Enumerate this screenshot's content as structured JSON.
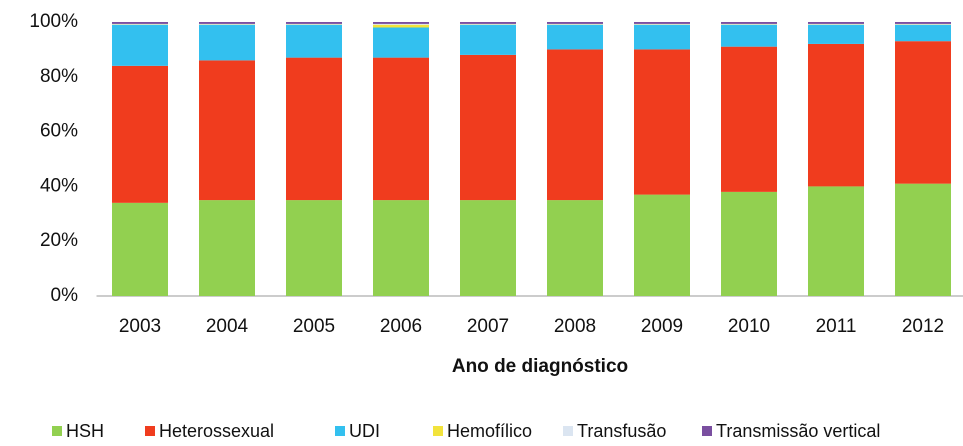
{
  "chart_data": {
    "type": "stacked_bar",
    "x_label": "Ano de diagnóstico",
    "categories": [
      "2003",
      "2004",
      "2005",
      "2006",
      "2007",
      "2008",
      "2009",
      "2010",
      "2011",
      "2012"
    ],
    "series": [
      {
        "name": "HSH",
        "color": "#92d050",
        "values": [
          34,
          35,
          35,
          35,
          35,
          35,
          37,
          38,
          40,
          41
        ]
      },
      {
        "name": "Heterossexual",
        "color": "#f03c1e",
        "values": [
          50,
          51,
          52,
          52,
          53,
          55,
          53,
          53,
          52,
          52
        ]
      },
      {
        "name": "UDI",
        "color": "#33c0ef",
        "values": [
          15,
          13,
          12,
          11,
          11,
          9,
          9,
          8,
          7,
          6
        ]
      },
      {
        "name": "Hemofílico",
        "color": "#f2e33c",
        "values": [
          0.1,
          0.1,
          0.1,
          1,
          0.1,
          0.1,
          0.1,
          0.1,
          0.1,
          0.1
        ]
      },
      {
        "name": "Transfusão",
        "color": "#dbe5f1",
        "values": [
          0.2,
          0.2,
          0.2,
          0.3,
          0.2,
          0.2,
          0.2,
          0.2,
          0.2,
          0.2
        ]
      },
      {
        "name": "Transmissão vertical",
        "color": "#7a4fa0",
        "values": [
          0.7,
          0.7,
          0.7,
          0.7,
          0.7,
          0.7,
          0.7,
          0.7,
          0.7,
          0.7
        ]
      }
    ],
    "ylim": [
      0,
      100
    ],
    "yticks": [
      {
        "value": 0,
        "label": "0%"
      },
      {
        "value": 20,
        "label": "20%"
      },
      {
        "value": 40,
        "label": "40%"
      },
      {
        "value": 60,
        "label": "60%"
      },
      {
        "value": 80,
        "label": "80%"
      },
      {
        "value": 100,
        "label": "100%"
      }
    ],
    "legend": "bottom"
  }
}
